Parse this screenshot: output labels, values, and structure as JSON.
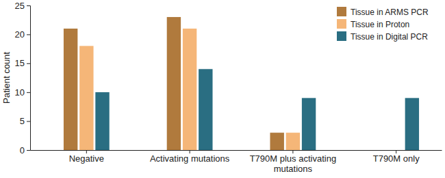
{
  "chart_data": {
    "type": "bar",
    "y_label": "Patient count",
    "categories": [
      "Negative",
      "Activating mutations",
      "T790M plus activating mutations",
      "T790M only"
    ],
    "series": [
      {
        "name": "Tissue in ARMS PCR",
        "color": "#b07a3d",
        "values": [
          21,
          23,
          3,
          0
        ]
      },
      {
        "name": "Tissue in Proton",
        "color": "#f5b678",
        "values": [
          18,
          21,
          3,
          0
        ]
      },
      {
        "name": "Tissue in Digital PCR",
        "color": "#2a6e82",
        "values": [
          10,
          14,
          9,
          9
        ]
      }
    ],
    "ylim": [
      0,
      25
    ],
    "yticks": [
      0,
      5,
      10,
      15,
      20,
      25
    ],
    "grid": false,
    "legend": "upper right"
  }
}
